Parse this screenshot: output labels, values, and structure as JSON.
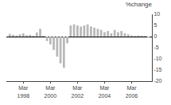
{
  "chart_data": {
    "type": "bar",
    "title": "%change",
    "color": "#b8b8b8",
    "categories": [
      null,
      null,
      null,
      null,
      "Mar\n1998",
      null,
      null,
      null,
      null,
      null,
      null,
      null,
      "Mar\n2000",
      null,
      null,
      null,
      null,
      null,
      null,
      null,
      "Mar\n2002",
      null,
      null,
      null,
      null,
      null,
      null,
      null,
      "Mar\n2004",
      null,
      null,
      null,
      null,
      null,
      null,
      null,
      "Mar\n2006",
      null,
      null,
      null,
      null,
      null
    ],
    "values": [
      1.2,
      0.8,
      0.5,
      1.0,
      1.5,
      0.6,
      0.8,
      0.4,
      1.8,
      3.5,
      0.4,
      -2.0,
      -3.5,
      -6.0,
      -9.0,
      -12.0,
      -14.0,
      -3.0,
      5.0,
      5.5,
      5.0,
      4.5,
      5.0,
      5.5,
      4.5,
      4.0,
      3.5,
      3.0,
      2.0,
      2.5,
      1.5,
      3.0,
      2.0,
      2.5,
      1.5,
      1.0,
      0.5,
      0.3,
      0.5,
      0.4,
      0.3,
      -0.5
    ],
    "ylim": [
      -20,
      10
    ],
    "yticks": [
      10,
      5,
      0,
      -5,
      -10,
      -15,
      -20
    ],
    "grid": false
  }
}
